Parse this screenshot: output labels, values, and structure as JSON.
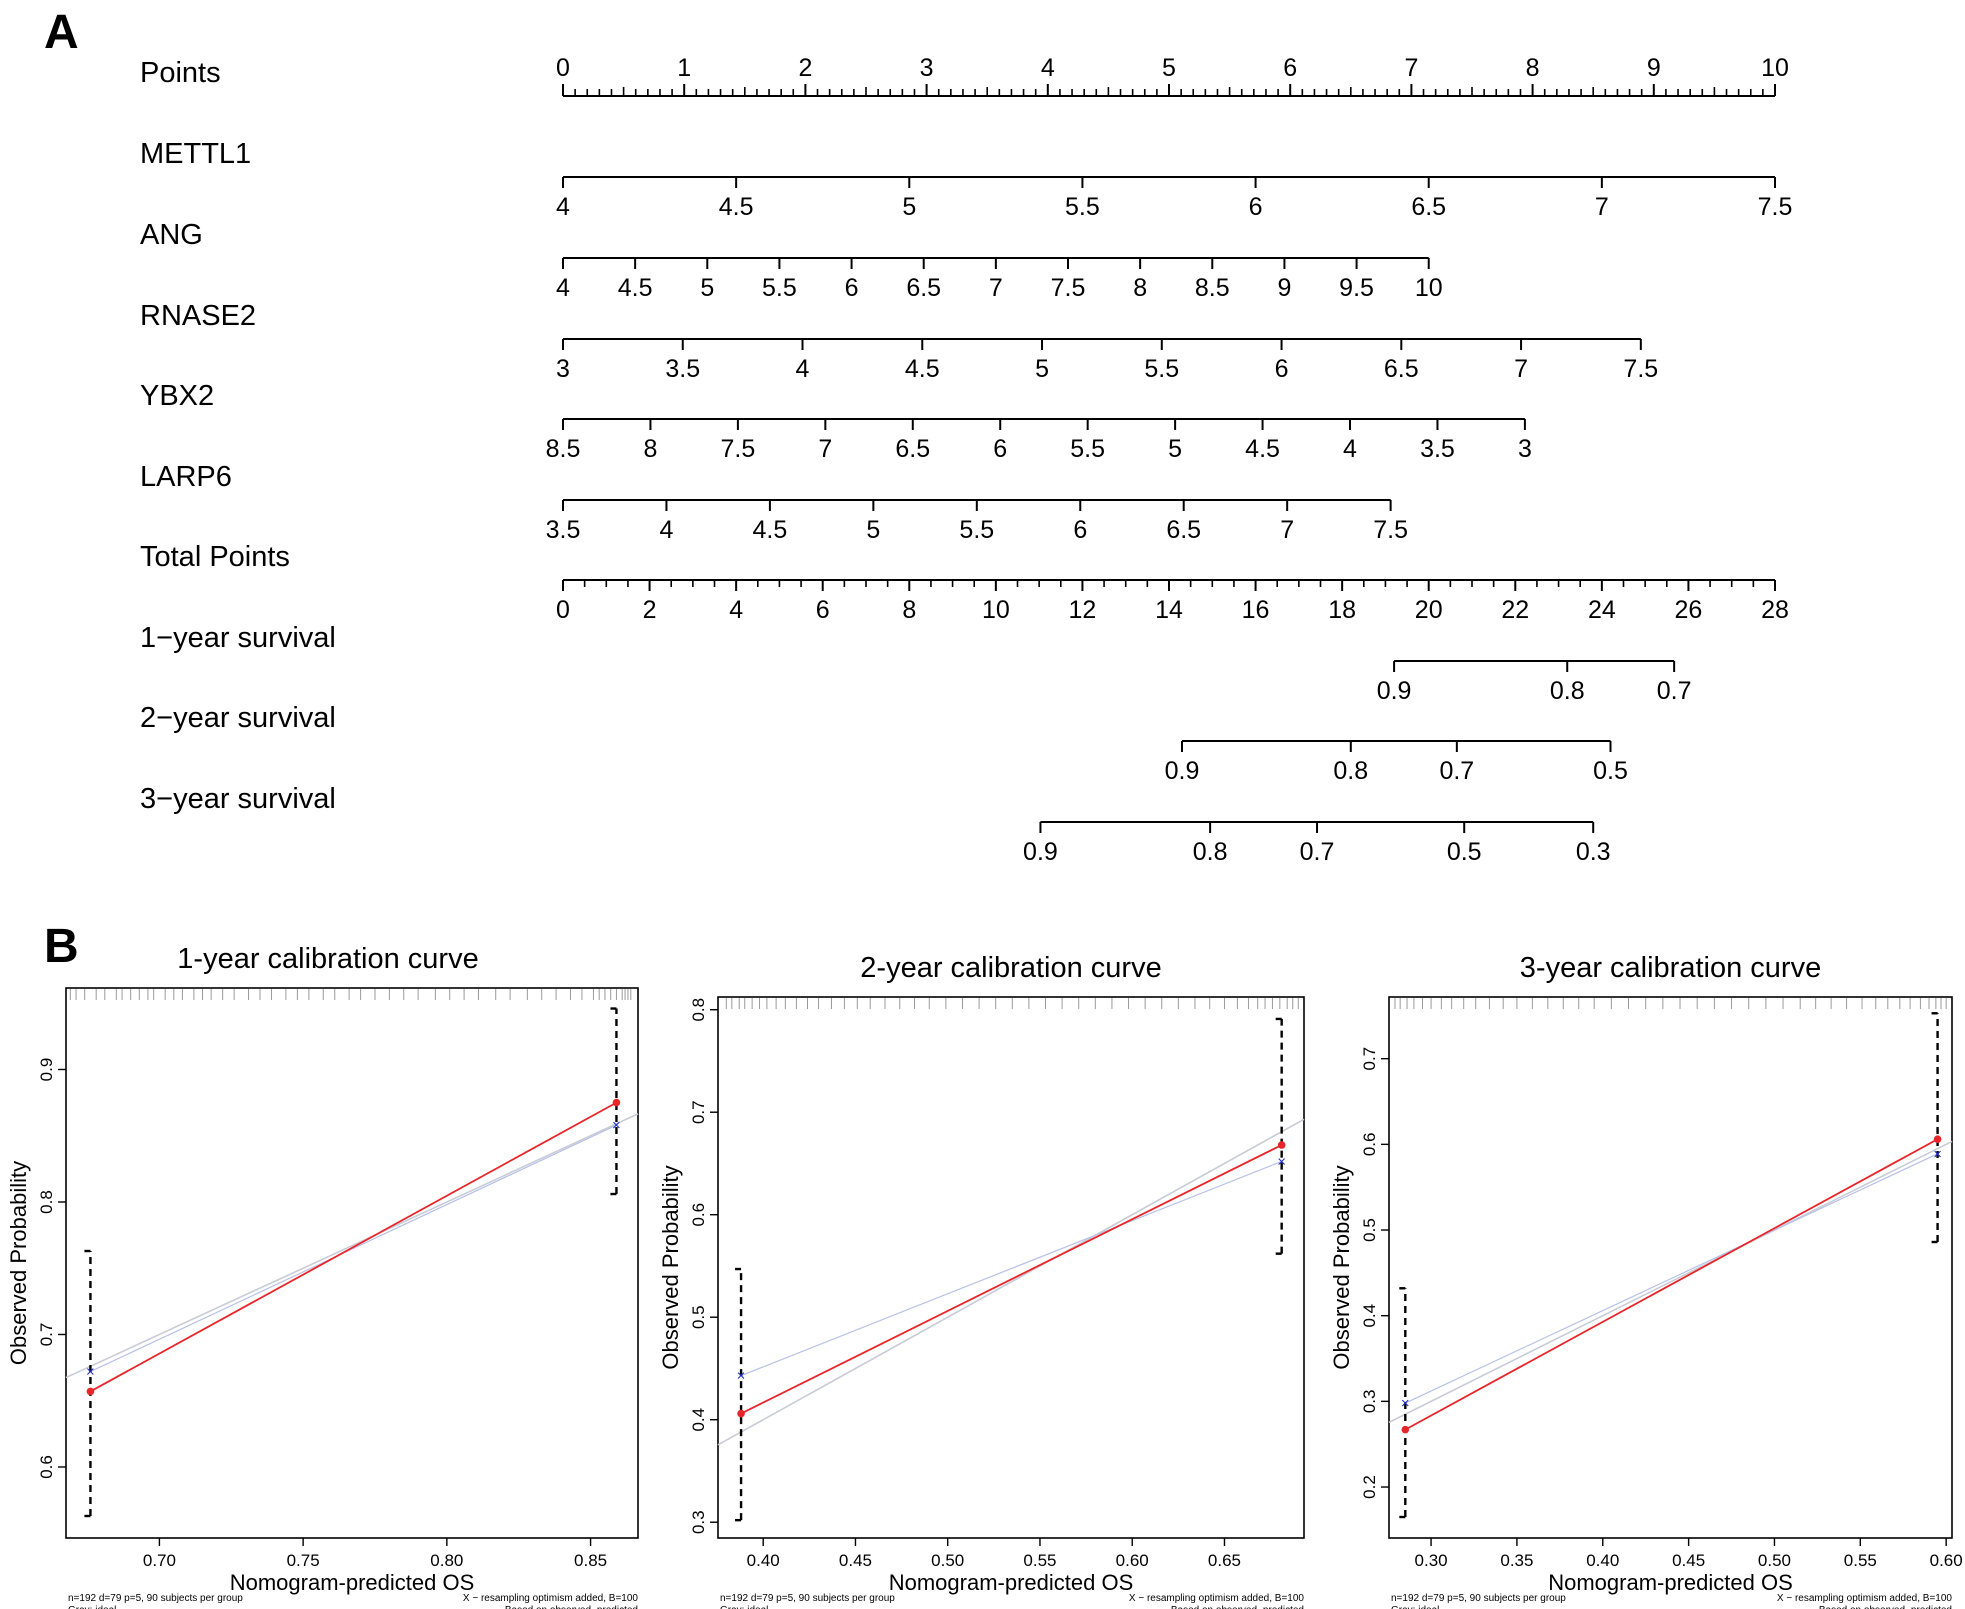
{
  "panel_a": {
    "label": "A",
    "chart_data": {
      "type": "nomogram",
      "title": "",
      "rows": [
        {
          "name": "Points",
          "kind": "points",
          "ticks": [
            "0",
            "1",
            "2",
            "3",
            "4",
            "5",
            "6",
            "7",
            "8",
            "9",
            "10"
          ],
          "tick_points": [
            0,
            1,
            2,
            3,
            4,
            5,
            6,
            7,
            8,
            9,
            10
          ],
          "minor_per_major": 10
        },
        {
          "name": "METTL1",
          "ticks": [
            "4",
            "4.5",
            "5",
            "5.5",
            "6",
            "6.5",
            "7",
            "7.5"
          ],
          "tick_points": [
            0,
            1.4286,
            2.8571,
            4.2857,
            5.7143,
            7.1429,
            8.5714,
            10
          ]
        },
        {
          "name": "ANG",
          "ticks": [
            "4",
            "4.5",
            "5",
            "5.5",
            "6",
            "6.5",
            "7",
            "7.5",
            "8",
            "8.5",
            "9",
            "9.5",
            "10"
          ],
          "tick_points": [
            0,
            0.5952,
            1.1905,
            1.7857,
            2.381,
            2.9762,
            3.5714,
            4.1667,
            4.7619,
            5.3571,
            5.9524,
            6.5476,
            7.1429
          ]
        },
        {
          "name": "RNASE2",
          "ticks": [
            "3",
            "3.5",
            "4",
            "4.5",
            "5",
            "5.5",
            "6",
            "6.5",
            "7",
            "7.5"
          ],
          "tick_points": [
            0,
            0.9881,
            1.9762,
            2.9643,
            3.9524,
            4.9405,
            5.9286,
            6.9167,
            7.9048,
            8.8929
          ]
        },
        {
          "name": "YBX2",
          "ticks": [
            "8.5",
            "8",
            "7.5",
            "7",
            "6.5",
            "6",
            "5.5",
            "5",
            "4.5",
            "4",
            "3.5",
            "3"
          ],
          "tick_points": [
            0,
            0.7215,
            1.443,
            2.1645,
            2.886,
            3.6075,
            4.329,
            5.0505,
            5.772,
            6.4935,
            7.215,
            7.9365
          ]
        },
        {
          "name": "LARP6",
          "ticks": [
            "3.5",
            "4",
            "4.5",
            "5",
            "5.5",
            "6",
            "6.5",
            "7",
            "7.5"
          ],
          "tick_points": [
            0,
            0.8536,
            1.7071,
            2.5607,
            3.4143,
            4.2679,
            5.1214,
            5.975,
            6.8286
          ]
        },
        {
          "name": "Total Points",
          "kind": "total",
          "ticks": [
            "0",
            "2",
            "4",
            "6",
            "8",
            "10",
            "12",
            "14",
            "16",
            "18",
            "20",
            "22",
            "24",
            "26",
            "28"
          ],
          "tick_values": [
            0,
            2,
            4,
            6,
            8,
            10,
            12,
            14,
            16,
            18,
            20,
            22,
            24,
            26,
            28
          ],
          "range": [
            0,
            28
          ],
          "minor_per_major": 4
        },
        {
          "name": "1−year survival",
          "kind": "survival",
          "ticks": [
            "0.9",
            "0.8",
            "0.7"
          ],
          "tick_total_points": [
            19.2,
            23.2,
            25.67
          ]
        },
        {
          "name": "2−year survival",
          "kind": "survival",
          "ticks": [
            "0.9",
            "0.8",
            "0.7",
            "0.5"
          ],
          "tick_total_points": [
            14.3,
            18.2,
            20.65,
            24.2
          ]
        },
        {
          "name": "3−year survival",
          "kind": "survival",
          "ticks": [
            "0.9",
            "0.8",
            "0.7",
            "0.5",
            "0.3"
          ],
          "tick_total_points": [
            11.03,
            14.95,
            17.42,
            20.82,
            23.8
          ]
        }
      ]
    }
  },
  "panel_b": {
    "label": "B",
    "chart_data": [
      {
        "type": "scatter",
        "title": "1-year calibration curve",
        "xlabel": "Nomogram-predicted OS",
        "ylabel": "Observed Probability",
        "xlim": [
          0.6675,
          0.8665
        ],
        "ylim": [
          0.5464,
          0.9615
        ],
        "xticks": [
          0.7,
          0.75,
          0.8,
          0.85
        ],
        "xtick_labels": [
          "0.70",
          "0.75",
          "0.80",
          "0.85"
        ],
        "yticks": [
          0.6,
          0.7,
          0.8,
          0.9
        ],
        "ytick_labels": [
          "0.6",
          "0.7",
          "0.8",
          "0.9"
        ],
        "series": [
          {
            "name": "",
            "kind": "apparent",
            "color": "#e8262a",
            "x": [
              0.676,
              0.859
            ],
            "y": [
              0.657,
              0.875
            ],
            "ci_low": [
              0.563,
              0.806
            ],
            "ci_high": [
              0.763,
              0.946
            ]
          },
          {
            "name": "X − resampling optimism added, B=100",
            "kind": "bias-corrected",
            "color": "#1f2fc7",
            "x": [
              0.676,
              0.859
            ],
            "y": [
              0.672,
              0.858
            ]
          },
          {
            "name": "Gray: ideal",
            "kind": "ideal",
            "color": "#c8ccd6",
            "x": [
              0.6675,
              0.8665
            ],
            "y": [
              0.6675,
              0.8665
            ]
          }
        ],
        "rug": [
          0.669,
          0.671,
          0.674,
          0.678,
          0.681,
          0.685,
          0.687,
          0.69,
          0.693,
          0.696,
          0.698,
          0.702,
          0.705,
          0.708,
          0.712,
          0.715,
          0.718,
          0.722,
          0.726,
          0.731,
          0.735,
          0.739,
          0.744,
          0.748,
          0.752,
          0.757,
          0.761,
          0.766,
          0.77,
          0.775,
          0.78,
          0.785,
          0.79,
          0.796,
          0.801,
          0.806,
          0.811,
          0.817,
          0.822,
          0.828,
          0.833,
          0.838,
          0.843,
          0.847,
          0.851,
          0.853,
          0.855,
          0.857,
          0.859,
          0.861,
          0.862,
          0.863,
          0.864
        ],
        "footnote_left": [
          "n=192 d=79 p=5, 90 subjects per group",
          "Gray: ideal"
        ],
        "footnote_right": [
          "X − resampling optimism added, B=100",
          "Based on observed−predicted"
        ]
      },
      {
        "type": "scatter",
        "title": "2-year calibration curve",
        "xlabel": "Nomogram-predicted OS",
        "ylabel": "Observed Probability",
        "xlim": [
          0.3755,
          0.6931
        ],
        "ylim": [
          0.2846,
          0.8124
        ],
        "xticks": [
          0.4,
          0.45,
          0.5,
          0.55,
          0.6,
          0.65
        ],
        "xtick_labels": [
          "0.40",
          "0.45",
          "0.50",
          "0.55",
          "0.60",
          "0.65"
        ],
        "yticks": [
          0.3,
          0.4,
          0.5,
          0.6,
          0.7,
          0.8
        ],
        "ytick_labels": [
          "0.3",
          "0.4",
          "0.5",
          "0.6",
          "0.7",
          "0.8"
        ],
        "series": [
          {
            "name": "",
            "kind": "apparent",
            "color": "#e8262a",
            "x": [
              0.388,
              0.681
            ],
            "y": [
              0.406,
              0.668
            ],
            "ci_low": [
              0.302,
              0.562
            ],
            "ci_high": [
              0.547,
              0.791
            ]
          },
          {
            "name": "X − resampling optimism added, B=100",
            "kind": "bias-corrected",
            "color": "#1f2fc7",
            "x": [
              0.388,
              0.681
            ],
            "y": [
              0.443,
              0.652
            ]
          },
          {
            "name": "Gray: ideal",
            "kind": "ideal",
            "color": "#c8ccd6",
            "x": [
              0.3755,
              0.6931
            ],
            "y": [
              0.3755,
              0.6931
            ]
          }
        ],
        "rug": [
          0.38,
          0.383,
          0.387,
          0.39,
          0.394,
          0.398,
          0.402,
          0.407,
          0.412,
          0.418,
          0.424,
          0.43,
          0.437,
          0.444,
          0.451,
          0.458,
          0.466,
          0.474,
          0.482,
          0.49,
          0.499,
          0.508,
          0.517,
          0.526,
          0.535,
          0.544,
          0.553,
          0.562,
          0.571,
          0.58,
          0.589,
          0.598,
          0.607,
          0.616,
          0.625,
          0.634,
          0.642,
          0.65,
          0.657,
          0.663,
          0.668,
          0.672,
          0.676,
          0.68,
          0.684,
          0.687,
          0.69
        ],
        "footnote_left": [
          "n=192 d=79 p=5, 90 subjects per group",
          "Gray: ideal"
        ],
        "footnote_right": [
          "X − resampling optimism added, B=100",
          "Based on observed−predicted"
        ]
      },
      {
        "type": "scatter",
        "title": "3-year calibration curve",
        "xlabel": "Nomogram-predicted OS",
        "ylabel": "Observed Probability",
        "xlim": [
          0.2755,
          0.6034
        ],
        "ylim": [
          0.1405,
          0.772
        ],
        "xticks": [
          0.3,
          0.35,
          0.4,
          0.45,
          0.5,
          0.55,
          0.6
        ],
        "xtick_labels": [
          "0.30",
          "0.35",
          "0.40",
          "0.45",
          "0.50",
          "0.55",
          "0.60"
        ],
        "yticks": [
          0.2,
          0.3,
          0.4,
          0.5,
          0.6,
          0.7
        ],
        "ytick_labels": [
          "0.2",
          "0.3",
          "0.4",
          "0.5",
          "0.6",
          "0.7"
        ],
        "series": [
          {
            "name": "",
            "kind": "apparent",
            "color": "#e8262a",
            "x": [
              0.285,
              0.595
            ],
            "y": [
              0.267,
              0.606
            ],
            "ci_low": [
              0.165,
              0.486
            ],
            "ci_high": [
              0.432,
              0.753
            ]
          },
          {
            "name": "X − resampling optimism added, B=100",
            "kind": "bias-corrected",
            "color": "#1f2fc7",
            "x": [
              0.285,
              0.595
            ],
            "y": [
              0.298,
              0.589
            ]
          },
          {
            "name": "Gray: ideal",
            "kind": "ideal",
            "color": "#c8ccd6",
            "x": [
              0.2755,
              0.6034
            ],
            "y": [
              0.2755,
              0.6034
            ]
          }
        ],
        "rug": [
          0.279,
          0.282,
          0.286,
          0.29,
          0.295,
          0.3,
          0.306,
          0.312,
          0.319,
          0.326,
          0.334,
          0.342,
          0.35,
          0.359,
          0.368,
          0.377,
          0.386,
          0.395,
          0.405,
          0.415,
          0.425,
          0.435,
          0.445,
          0.455,
          0.465,
          0.475,
          0.485,
          0.495,
          0.505,
          0.515,
          0.524,
          0.533,
          0.542,
          0.551,
          0.559,
          0.566,
          0.573,
          0.579,
          0.585,
          0.59,
          0.594,
          0.597,
          0.6
        ],
        "footnote_left": [
          "n=192 d=79 p=5, 90 subjects per group",
          "Gray: ideal"
        ],
        "footnote_right": [
          "X − resampling optimism added, B=100",
          "Based on observed−predicted"
        ]
      }
    ]
  }
}
